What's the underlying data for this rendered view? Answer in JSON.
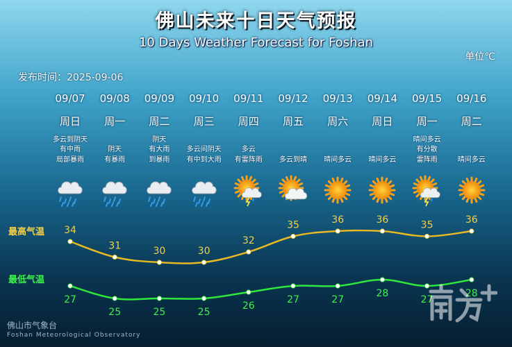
{
  "header": {
    "title": "佛山未来十日天气预报",
    "subtitle": "10 Days Weather Forecast for Foshan",
    "unit": "单位℃",
    "publish_time": "发布时间：2025-09-06"
  },
  "labels": {
    "high": "最高气温",
    "low": "最低气温"
  },
  "footer": {
    "cn": "佛山市气象台",
    "en": "Foshan Meteorological Observatory"
  },
  "days": [
    {
      "date": "09/07",
      "weekday": "周日",
      "desc": [
        "多云到阴天",
        "有中雨",
        "局部暴雨"
      ],
      "icon": "cloud-rain-icon"
    },
    {
      "date": "09/08",
      "weekday": "周一",
      "desc": [
        "阴天",
        "有暴雨"
      ],
      "icon": "cloud-rain-icon"
    },
    {
      "date": "09/09",
      "weekday": "周二",
      "desc": [
        "阴天",
        "有大雨",
        "到暴雨"
      ],
      "icon": "cloud-rain-icon"
    },
    {
      "date": "09/10",
      "weekday": "周三",
      "desc": [
        "多云间阴天",
        "有中到大雨"
      ],
      "icon": "cloud-rain-icon"
    },
    {
      "date": "09/11",
      "weekday": "周四",
      "desc": [
        "多云",
        "有雷阵雨"
      ],
      "icon": "sun-thunder-icon"
    },
    {
      "date": "09/12",
      "weekday": "周五",
      "desc": [
        "多云到晴"
      ],
      "icon": "sun-cloud-icon"
    },
    {
      "date": "09/13",
      "weekday": "周六",
      "desc": [
        "晴间多云"
      ],
      "icon": "sun-icon"
    },
    {
      "date": "09/14",
      "weekday": "周日",
      "desc": [
        "晴间多云"
      ],
      "icon": "sun-icon"
    },
    {
      "date": "09/15",
      "weekday": "周一",
      "desc": [
        "晴间多云",
        "有分散",
        "雷阵雨"
      ],
      "icon": "sun-thunder-icon"
    },
    {
      "date": "09/16",
      "weekday": "周二",
      "desc": [
        "晴间多云"
      ],
      "icon": "sun-icon"
    }
  ],
  "chart_data": {
    "type": "line",
    "categories": [
      "09/07",
      "09/08",
      "09/09",
      "09/10",
      "09/11",
      "09/12",
      "09/13",
      "09/14",
      "09/15",
      "09/16"
    ],
    "series": [
      {
        "name": "最高气温",
        "values": [
          34,
          31,
          30,
          30,
          32,
          35,
          36,
          36,
          35,
          36
        ],
        "color": "#e8b923"
      },
      {
        "name": "最低气温",
        "values": [
          27,
          25,
          25,
          25,
          26,
          27,
          27,
          28,
          27,
          28
        ],
        "color": "#2ee83c"
      }
    ]
  },
  "colors": {
    "high": "#e8b923",
    "low": "#2ee83c",
    "high_label": "#f4d04b",
    "low_label": "#3ef04a"
  }
}
